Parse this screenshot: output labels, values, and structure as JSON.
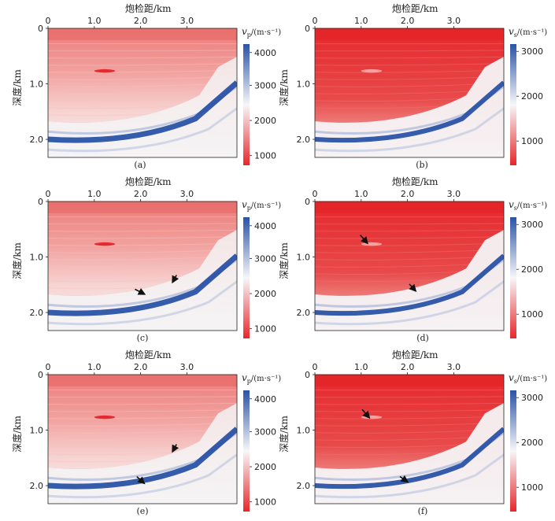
{
  "figure": {
    "x_label": "炮检距/km",
    "y_label": "深度/km",
    "x_ticks": [
      "0",
      "1.0",
      "2.0",
      "3.0"
    ],
    "y_ticks": [
      "0",
      "1.0",
      "2.0"
    ],
    "colors": {
      "low": "#e8262b",
      "mid": "#f6f6f8",
      "high": "#2a52a6",
      "arrow": "#111111",
      "axis": "#222222"
    },
    "panels": [
      {
        "id": "a",
        "caption": "(a)",
        "param": "v",
        "param_sub": "p",
        "unit": "/(m·s⁻¹)",
        "colorbar_ticks": [
          "4000",
          "3000",
          "2000",
          "1000"
        ],
        "arrows": 0
      },
      {
        "id": "b",
        "caption": "(b)",
        "param": "v",
        "param_sub": "s",
        "unit": "/(m·s⁻¹)",
        "colorbar_ticks": [
          "3000",
          "2000",
          "1000"
        ],
        "arrows": 0
      },
      {
        "id": "c",
        "caption": "(c)",
        "param": "v",
        "param_sub": "p",
        "unit": "/(m·s⁻¹)",
        "colorbar_ticks": [
          "4000",
          "3000",
          "2000",
          "1000"
        ],
        "arrows": 2
      },
      {
        "id": "d",
        "caption": "(d)",
        "param": "v",
        "param_sub": "s",
        "unit": "/(m·s⁻¹)",
        "colorbar_ticks": [
          "3000",
          "2000",
          "1000"
        ],
        "arrows": 2
      },
      {
        "id": "e",
        "caption": "(e)",
        "param": "v",
        "param_sub": "p",
        "unit": "/(m·s⁻¹)",
        "colorbar_ticks": [
          "4000",
          "3000",
          "2000",
          "1000"
        ],
        "arrows": 2
      },
      {
        "id": "f",
        "caption": "(f)",
        "param": "v",
        "param_sub": "s",
        "unit": "/(m·s⁻¹)",
        "colorbar_ticks": [
          "3000",
          "2000",
          "1000"
        ],
        "arrows": 2
      }
    ]
  }
}
